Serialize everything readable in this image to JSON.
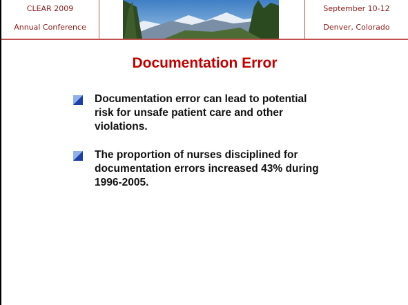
{
  "header": {
    "left": [
      "CLEAR 2009",
      "Annual Conference"
    ],
    "right": [
      "September 10-12",
      "Denver, Colorado"
    ]
  },
  "title": "Documentation Error",
  "bullets": [
    "Documentation error can lead to potential risk for unsafe patient care and other violations.",
    "The proportion of nurses disciplined for documentation errors increased 43% during 1996-2005."
  ]
}
